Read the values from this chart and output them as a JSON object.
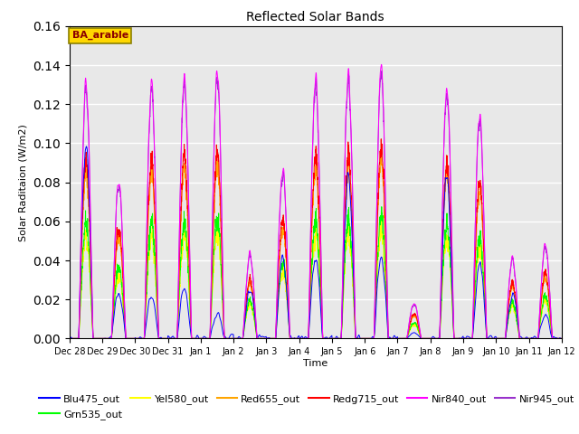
{
  "title": "Reflected Solar Bands",
  "xlabel": "Time",
  "ylabel": "Solar Raditaion (W/m2)",
  "annotation_text": "BA_arable",
  "annotation_color": "#8B0000",
  "annotation_bg": "#FFD700",
  "ylim": [
    0,
    0.16
  ],
  "legend_entries": [
    {
      "label": "Blu475_out",
      "color": "#0000FF"
    },
    {
      "label": "Grn535_out",
      "color": "#00FF00"
    },
    {
      "label": "Yel580_out",
      "color": "#FFFF00"
    },
    {
      "label": "Red655_out",
      "color": "#FFA500"
    },
    {
      "label": "Redg715_out",
      "color": "#FF0000"
    },
    {
      "label": "Nir840_out",
      "color": "#FF00FF"
    },
    {
      "label": "Nir945_out",
      "color": "#9932CC"
    }
  ],
  "tick_labels": [
    "Dec 28",
    "Dec 29",
    "Dec 30",
    "Dec 31",
    "Jan 1",
    "Jan 2",
    "Jan 3",
    "Jan 4",
    "Jan 5",
    "Jan 6",
    "Jan 7",
    "Jan 8",
    "Jan 9",
    "Jan 10",
    "Jan 11",
    "Jan 12"
  ],
  "background_color": "#E8E8E8",
  "grid_color": "#FFFFFF",
  "nir840_day_peaks": [
    0.13,
    0.08,
    0.13,
    0.135,
    0.135,
    0.043,
    0.088,
    0.135,
    0.134,
    0.138,
    0.018,
    0.128,
    0.115,
    0.041,
    0.048
  ],
  "blu475_day_peaks": [
    0.1,
    0.023,
    0.021,
    0.025,
    0.013,
    0.026,
    0.04,
    0.04,
    0.082,
    0.042,
    0.003,
    0.082,
    0.038,
    0.023,
    0.011
  ],
  "n_days": 15,
  "n_points_per_day": 200
}
